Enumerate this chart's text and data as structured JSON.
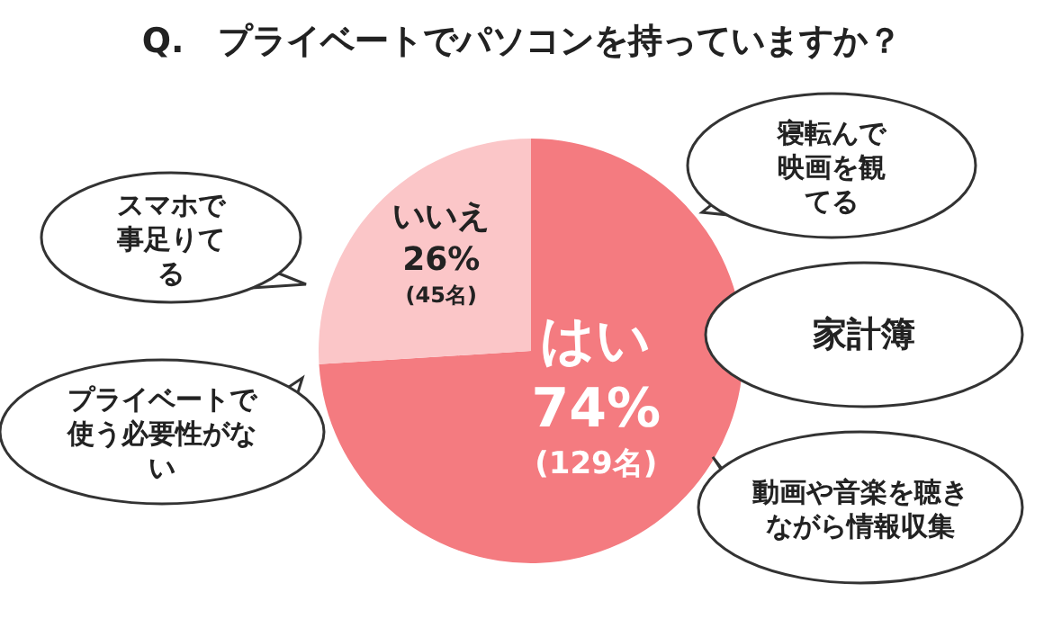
{
  "chart_data": {
    "type": "pie",
    "title": "Q.　プライベートでパソコンを持っていますか？",
    "categories": [
      "はい",
      "いいえ"
    ],
    "values": [
      74,
      26
    ],
    "colors": [
      "#f47b80",
      "#fbc6c8"
    ],
    "value_labels": [
      "74%",
      "26%"
    ],
    "annotations": [
      "(129名)",
      "(45名)",
      "スマホで事足りてる",
      "プライベートで使う必要性がない",
      "寝転んで映画を観てる",
      "家計簿",
      "動画や音楽を聴きながら情報収集"
    ],
    "legend": false
  }
}
